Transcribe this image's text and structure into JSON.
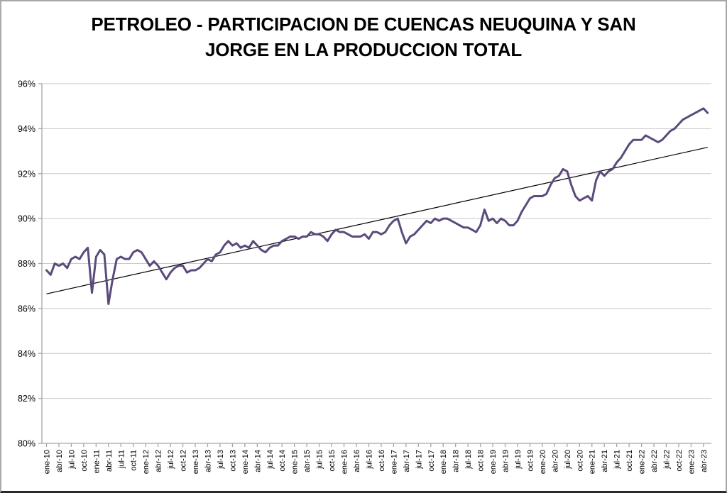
{
  "window": {
    "background": "#ffffff",
    "border_color": "#a6a6a6",
    "bottom_edge_color": "#2a2a2a"
  },
  "chart_data": {
    "type": "line",
    "title": "PETROLEO - PARTICIPACION DE CUENCAS NEUQUINA Y SAN JORGE EN LA PRODUCCION TOTAL",
    "title_lines": [
      "PETROLEO - PARTICIPACION DE CUENCAS NEUQUINA Y SAN",
      "JORGE EN LA PRODUCCION TOTAL"
    ],
    "xlabel": "",
    "ylabel": "",
    "ylim": [
      80,
      96
    ],
    "y_tick_step": 2,
    "y_tick_suffix": "%",
    "y_tick_labels": [
      "80%",
      "82%",
      "84%",
      "86%",
      "88%",
      "90%",
      "92%",
      "94%",
      "96%"
    ],
    "grid": true,
    "legend": "none",
    "x_label_every": 3,
    "x": [
      "ene-10",
      "feb-10",
      "mar-10",
      "abr-10",
      "may-10",
      "jun-10",
      "jul-10",
      "ago-10",
      "sep-10",
      "oct-10",
      "nov-10",
      "dic-10",
      "ene-11",
      "feb-11",
      "mar-11",
      "abr-11",
      "may-11",
      "jun-11",
      "jul-11",
      "ago-11",
      "sep-11",
      "oct-11",
      "nov-11",
      "dic-11",
      "ene-12",
      "feb-12",
      "mar-12",
      "abr-12",
      "may-12",
      "jun-12",
      "jul-12",
      "ago-12",
      "sep-12",
      "oct-12",
      "nov-12",
      "dic-12",
      "ene-13",
      "feb-13",
      "mar-13",
      "abr-13",
      "may-13",
      "jun-13",
      "jul-13",
      "ago-13",
      "sep-13",
      "oct-13",
      "nov-13",
      "dic-13",
      "ene-14",
      "feb-14",
      "mar-14",
      "abr-14",
      "may-14",
      "jun-14",
      "jul-14",
      "ago-14",
      "sep-14",
      "oct-14",
      "nov-14",
      "dic-14",
      "ene-15",
      "feb-15",
      "mar-15",
      "abr-15",
      "may-15",
      "jun-15",
      "jul-15",
      "ago-15",
      "sep-15",
      "oct-15",
      "nov-15",
      "dic-15",
      "ene-16",
      "feb-16",
      "mar-16",
      "abr-16",
      "may-16",
      "jun-16",
      "jul-16",
      "ago-16",
      "sep-16",
      "oct-16",
      "nov-16",
      "dic-16",
      "ene-17",
      "feb-17",
      "mar-17",
      "abr-17",
      "may-17",
      "jun-17",
      "jul-17",
      "ago-17",
      "sep-17",
      "oct-17",
      "nov-17",
      "dic-17",
      "ene-18",
      "feb-18",
      "mar-18",
      "abr-18",
      "may-18",
      "jun-18",
      "jul-18",
      "ago-18",
      "sep-18",
      "oct-18",
      "nov-18",
      "dic-18",
      "ene-19",
      "feb-19",
      "mar-19",
      "abr-19",
      "may-19",
      "jun-19",
      "jul-19",
      "ago-19",
      "sep-19",
      "oct-19",
      "nov-19",
      "dic-19",
      "ene-20",
      "feb-20",
      "mar-20",
      "abr-20",
      "may-20",
      "jun-20",
      "jul-20",
      "ago-20",
      "sep-20",
      "oct-20",
      "nov-20",
      "dic-20",
      "ene-21",
      "feb-21",
      "mar-21",
      "abr-21",
      "may-21",
      "jun-21",
      "jul-21",
      "ago-21",
      "sep-21",
      "oct-21",
      "nov-21",
      "dic-21",
      "ene-22",
      "feb-22",
      "mar-22",
      "abr-22",
      "may-22",
      "jun-22",
      "jul-22",
      "ago-22",
      "sep-22",
      "oct-22",
      "nov-22",
      "dic-22",
      "ene-23",
      "feb-23",
      "mar-23",
      "abr-23",
      "may-23"
    ],
    "series": [
      {
        "color": "#5b4a7c",
        "stroke_width": 3,
        "values": [
          87.7,
          87.5,
          88.0,
          87.9,
          88.0,
          87.8,
          88.2,
          88.3,
          88.2,
          88.5,
          88.7,
          86.7,
          88.3,
          88.6,
          88.4,
          86.2,
          87.3,
          88.2,
          88.3,
          88.2,
          88.2,
          88.5,
          88.6,
          88.5,
          88.2,
          87.9,
          88.1,
          87.9,
          87.6,
          87.3,
          87.6,
          87.8,
          87.9,
          87.9,
          87.6,
          87.7,
          87.7,
          87.8,
          88.0,
          88.2,
          88.1,
          88.4,
          88.5,
          88.8,
          89.0,
          88.8,
          88.9,
          88.7,
          88.8,
          88.7,
          89.0,
          88.8,
          88.6,
          88.5,
          88.7,
          88.8,
          88.8,
          89.0,
          89.1,
          89.2,
          89.2,
          89.1,
          89.2,
          89.2,
          89.4,
          89.3,
          89.3,
          89.2,
          89.0,
          89.3,
          89.5,
          89.4,
          89.4,
          89.3,
          89.2,
          89.2,
          89.2,
          89.3,
          89.1,
          89.4,
          89.4,
          89.3,
          89.4,
          89.7,
          89.9,
          90.0,
          89.4,
          88.9,
          89.2,
          89.3,
          89.5,
          89.7,
          89.9,
          89.8,
          90.0,
          89.9,
          90.0,
          90.0,
          89.9,
          89.8,
          89.7,
          89.6,
          89.6,
          89.5,
          89.4,
          89.7,
          90.4,
          89.9,
          90.0,
          89.8,
          90.0,
          89.9,
          89.7,
          89.7,
          89.9,
          90.3,
          90.6,
          90.9,
          91.0,
          91.0,
          91.0,
          91.1,
          91.5,
          91.8,
          91.9,
          92.2,
          92.1,
          91.5,
          91.0,
          90.8,
          90.9,
          91.0,
          90.8,
          91.7,
          92.1,
          91.9,
          92.1,
          92.2,
          92.5,
          92.7,
          93.0,
          93.3,
          93.5,
          93.5,
          93.5,
          93.7,
          93.6,
          93.5,
          93.4,
          93.5,
          93.7,
          93.9,
          94.0,
          94.2,
          94.4,
          94.5,
          94.6,
          94.7,
          94.8,
          94.9,
          94.7
        ]
      }
    ],
    "trendline": {
      "color": "#000000",
      "stroke_width": 1.2,
      "start_value": 86.65,
      "end_value": 93.17
    },
    "colors": {
      "grid_color": "#c9c9c9",
      "axis_color": "#a6a6a6",
      "tick_label_color": "#000000"
    }
  }
}
